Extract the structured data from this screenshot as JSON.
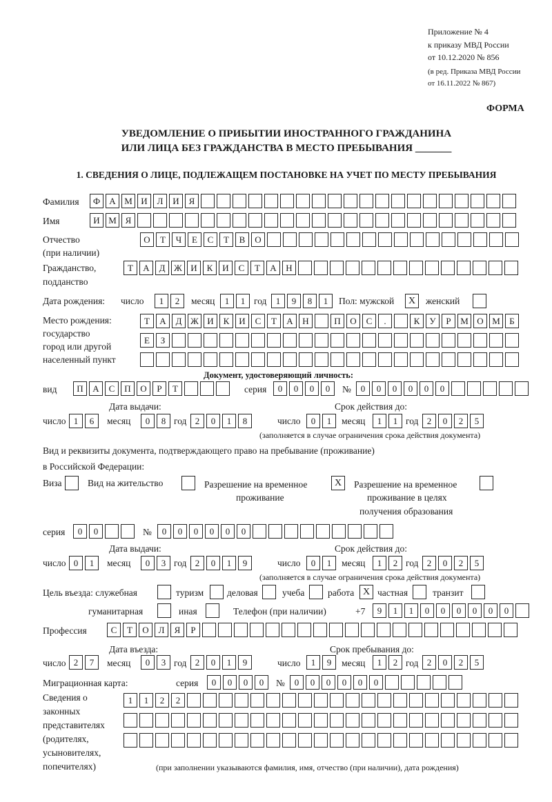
{
  "header": {
    "appendix": "Приложение № 4",
    "order": "к приказу МВД России",
    "order_date": "от 10.12.2020 № 856",
    "edition1": "(в ред. Приказа МВД России",
    "edition2": "от 16.11.2022 № 867)",
    "form": "ФОРМА",
    "title1": "УВЕДОМЛЕНИЕ О ПРИБЫТИИ ИНОСТРАННОГО ГРАЖДАНИНА",
    "title2": "ИЛИ ЛИЦА БЕЗ ГРАЖДАНСТВА В МЕСТО ПРЕБЫВАНИЯ _______",
    "section1": "1. СВЕДЕНИЯ О ЛИЦЕ, ПОДЛЕЖАЩЕМ ПОСТАНОВКЕ НА УЧЕТ ПО МЕСТУ ПРЕБЫВАНИЯ"
  },
  "person": {
    "surname_label": "Фамилия",
    "surname": "ФАМИЛИЯ",
    "name_label": "Имя",
    "name": "ИМЯ",
    "patronymic_label1": "Отчество",
    "patronymic_label2": "(при наличии)",
    "patronymic": "ОТЧЕСТВО",
    "citizenship_label1": "Гражданство,",
    "citizenship_label2": "подданство",
    "citizenship": "ТАДЖИКИСТАН",
    "birth_label": "Дата рождения:",
    "day_label": "число",
    "month_label": "месяц",
    "year_label": "год",
    "birth_day": "12",
    "birth_month": "11",
    "birth_year": "1981",
    "sex_label": "Пол: мужской",
    "female_label": "женский",
    "male": "X",
    "female": "",
    "birthplace_label1": "Место рождения:",
    "birthplace_label2": "государство",
    "birthplace_label3": "город или другой",
    "birthplace_label4": "населенный пункт",
    "birthplace_row1": "ТАДЖИКИСТАН ПОС. КУРМОМБ",
    "birthplace_row2": "ЕЗ",
    "birthplace_row3": ""
  },
  "id_doc": {
    "heading": "Документ, удостоверяющий личность:",
    "type_label": "вид",
    "type": "ПАСПОРТ",
    "series_label": "серия",
    "series": "0000",
    "number_label": "№",
    "number": "000000",
    "issue_label": "Дата выдачи:",
    "valid_label": "Срок действия до:",
    "issue_day": "16",
    "issue_month": "08",
    "issue_year": "2018",
    "valid_day": "01",
    "valid_month": "11",
    "valid_year": "2025",
    "note": "(заполняется в случае ограничения срока действия документа)"
  },
  "stay_doc": {
    "label1": "Вид и реквизиты документа, подтверждающего право на пребывание (проживание)",
    "label2": "в Российской Федерации:",
    "visa_label": "Виза",
    "visa": "",
    "residence_label": "Вид на жительство",
    "residence": "",
    "trp_label1": "Разрешение на временное",
    "trp_label2": "проживание",
    "trp": "X",
    "trp_edu_label1": "Разрешение на временное",
    "trp_edu_label2": "проживание в целях",
    "trp_edu_label3": "получения образования",
    "trp_edu": "",
    "series_label": "серия",
    "series": "00",
    "number_label": "№",
    "number": "000000",
    "issue_label": "Дата выдачи:",
    "valid_label": "Срок действия до:",
    "issue_day": "01",
    "issue_month": "03",
    "issue_year": "2019",
    "valid_day": "01",
    "valid_month": "12",
    "valid_year": "2025",
    "note": "(заполняется в случае ограничения срока действия документа)"
  },
  "purpose": {
    "label": "Цель въезда: служебная",
    "official": "",
    "tourism_label": "туризм",
    "tourism": "",
    "business_label": "деловая",
    "business": "",
    "study_label": "учеба",
    "study": "",
    "work_label": "работа",
    "work": "X",
    "private_label": "частная",
    "private": "",
    "transit_label": "транзит",
    "transit": "",
    "humanitarian_label": "гуманитарная",
    "humanitarian": "",
    "other_label": "иная",
    "other": "",
    "phone_label": "Телефон (при наличии)",
    "phone_prefix": "+7",
    "phone": "911000000"
  },
  "profession": {
    "label": "Профессия",
    "value": "СТОЛЯР"
  },
  "entry": {
    "entry_label": "Дата въезда:",
    "stay_label": "Срок пребывания до:",
    "entry_day": "27",
    "entry_month": "03",
    "entry_year": "2019",
    "stay_day": "19",
    "stay_month": "12",
    "stay_year": "2025"
  },
  "migration": {
    "label": "Миграционная карта:",
    "series_label": "серия",
    "series": "0000",
    "number_label": "№",
    "number": "000000"
  },
  "representatives": {
    "label1": "Сведения о",
    "label2": "законных",
    "label3": "представителях",
    "label4": "(родителях,",
    "label5": "усыновителях,",
    "label6": "попечителях)",
    "row1": "1122",
    "row2": "",
    "row3": "",
    "note": "(при заполнении указываются фамилия, имя, отчество (при наличии), дата рождения)"
  }
}
